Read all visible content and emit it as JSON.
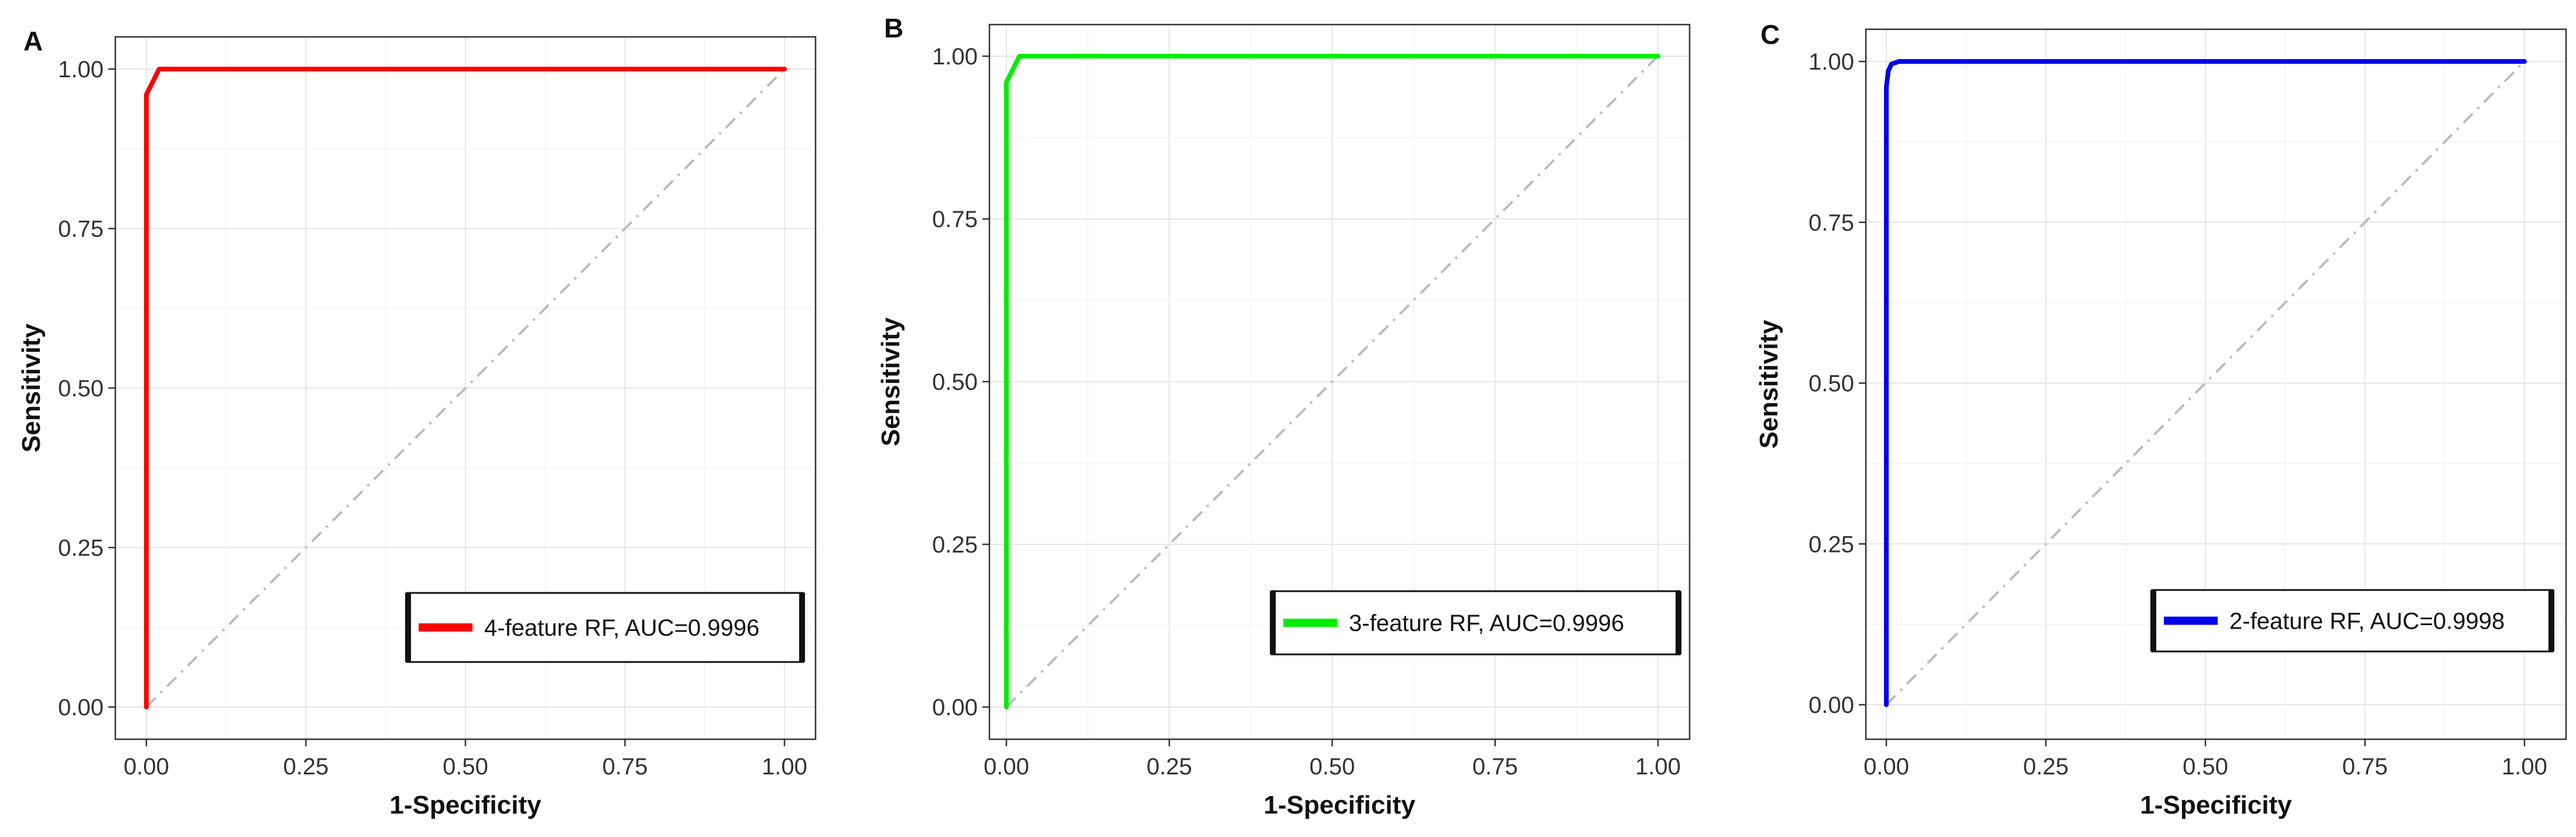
{
  "chart_data": [
    {
      "panel": "A",
      "type": "line",
      "xlabel": "1-Specificity",
      "ylabel": "Sensitivity",
      "xlim": [
        0,
        1
      ],
      "ylim": [
        0,
        1
      ],
      "xticks": [
        "0.00",
        "0.25",
        "0.50",
        "0.75",
        "1.00"
      ],
      "yticks": [
        "0.00",
        "0.25",
        "0.50",
        "0.75",
        "1.00"
      ],
      "grid": true,
      "legend_position": "bottom-right",
      "series": [
        {
          "name": "4-feature  RF,  AUC=0.9996",
          "color": "#ff0000",
          "x": [
            0,
            0,
            0.02,
            1
          ],
          "y": [
            0,
            0.96,
            1,
            1
          ]
        }
      ],
      "reference_line": {
        "x": [
          0,
          1
        ],
        "y": [
          0,
          1
        ],
        "color": "#bbbbbb",
        "style": "dash-dot"
      }
    },
    {
      "panel": "B",
      "type": "line",
      "xlabel": "1-Specificity",
      "ylabel": "Sensitivity",
      "xlim": [
        0,
        1
      ],
      "ylim": [
        0,
        1
      ],
      "xticks": [
        "0.00",
        "0.25",
        "0.50",
        "0.75",
        "1.00"
      ],
      "yticks": [
        "0.00",
        "0.25",
        "0.50",
        "0.75",
        "1.00"
      ],
      "grid": true,
      "legend_position": "bottom-right",
      "series": [
        {
          "name": "3-feature  RF,  AUC=0.9996",
          "color": "#00ee00",
          "x": [
            0,
            0,
            0.02,
            1
          ],
          "y": [
            0,
            0.96,
            1,
            1
          ]
        }
      ],
      "reference_line": {
        "x": [
          0,
          1
        ],
        "y": [
          0,
          1
        ],
        "color": "#bbbbbb",
        "style": "dash-dot"
      }
    },
    {
      "panel": "C",
      "type": "line",
      "xlabel": "1-Specificity",
      "ylabel": "Sensitivity",
      "xlim": [
        0,
        1
      ],
      "ylim": [
        0,
        1
      ],
      "xticks": [
        "0.00",
        "0.25",
        "0.50",
        "0.75",
        "1.00"
      ],
      "yticks": [
        "0.00",
        "0.25",
        "0.50",
        "0.75",
        "1.00"
      ],
      "grid": true,
      "legend_position": "bottom-right",
      "series": [
        {
          "name": "2-feature  RF,  AUC=0.9998",
          "color": "#0000ee",
          "x": [
            0,
            0,
            0.003,
            0.008,
            0.02,
            1
          ],
          "y": [
            0,
            0.96,
            0.985,
            0.996,
            1,
            1
          ]
        }
      ],
      "reference_line": {
        "x": [
          0,
          1
        ],
        "y": [
          0,
          1
        ],
        "color": "#bbbbbb",
        "style": "dash-dot"
      }
    }
  ]
}
